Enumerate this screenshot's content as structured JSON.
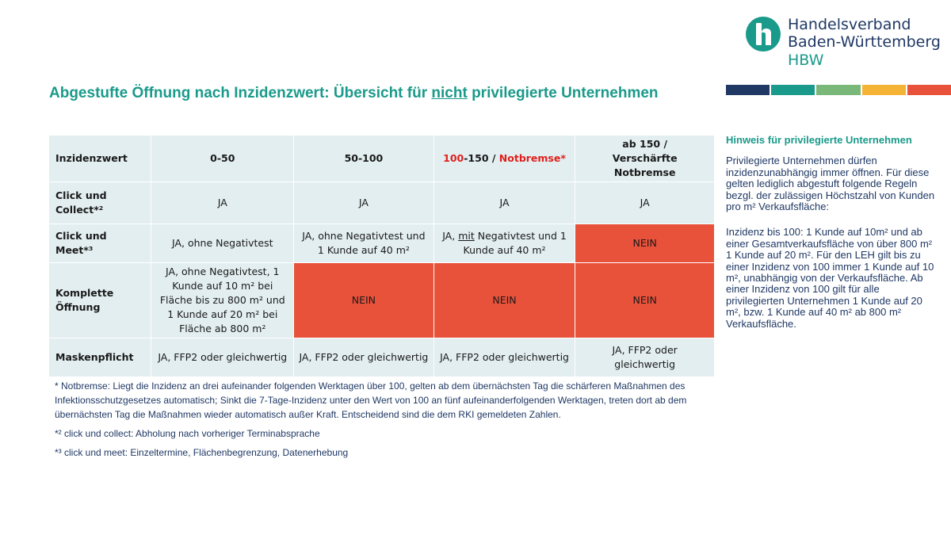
{
  "logo": {
    "line1": "Handelsverband",
    "line2": "Baden-Württemberg",
    "line3": "HBW",
    "mark_color": "#1a9a8a",
    "bar_colors": [
      "#1f3864",
      "#1a9a8a",
      "#7ab87a",
      "#f5b335",
      "#e8513a"
    ]
  },
  "title": {
    "part1": "Abgestufte Öffnung nach Inzidenzwert: Übersicht für ",
    "underlined": "nicht",
    "part2": " privilegierte Unternehmen"
  },
  "table": {
    "header": {
      "c0": "Inzidenzwert",
      "c1": "0-50",
      "c2": "50-100",
      "c3_a": "100",
      "c3_b": "-150 / ",
      "c3_c": "Notbremse*",
      "c4_a": "ab 150 /",
      "c4_b": "Verschärfte Notbremse"
    },
    "row1": {
      "label": "Click und Collect*²",
      "c1": "JA",
      "c2": "JA",
      "c3": "JA",
      "c4": "JA"
    },
    "row2": {
      "label": "Click und Meet*³",
      "c1": "JA, ohne Negativtest",
      "c2": "JA, ohne Negativtest und 1 Kunde auf 40 m²",
      "c3_a": "JA, ",
      "c3_b": "mit",
      "c3_c": " Negativtest und 1 Kunde auf 40 m²",
      "c4": "NEIN"
    },
    "row3": {
      "label": "Komplette Öffnung",
      "c1": "JA, ohne Negativtest, 1 Kunde auf 10 m² bei Fläche bis zu 800 m² und 1 Kunde auf 20 m² bei Fläche ab 800 m²",
      "c2": "NEIN",
      "c3": "NEIN",
      "c4": "NEIN"
    },
    "row4": {
      "label": "Maskenpflicht",
      "c1": "JA, FFP2 oder gleichwertig",
      "c2": "JA, FFP2 oder gleichwertig",
      "c3": "JA, FFP2 oder gleichwertig",
      "c4": "JA, FFP2 oder gleichwertig"
    },
    "nein_color": "#e8513a",
    "cell_color": "#e3eef0"
  },
  "footnotes": {
    "f1": "* Notbremse: Liegt die Inzidenz an drei aufeinander folgenden Werktagen über 100, gelten ab dem übernächsten Tag die schärferen Maßnahmen des Infektionsschutzgesetzes automatisch; Sinkt die 7-Tage-Inzidenz unter den Wert von 100 an fünf aufeinanderfolgenden Werktagen, treten dort ab dem übernächsten Tag die Maßnahmen wieder automatisch außer Kraft. Entscheidend sind die dem RKI gemeldeten Zahlen.",
    "f2": "*² click und collect: Abholung nach vorheriger Terminabsprache",
    "f3": "*³ click und meet: Einzeltermine, Flächenbegrenzung, Datenerhebung"
  },
  "side": {
    "title": "Hinweis für privilegierte Unternehmen",
    "p1": "Privilegierte Unternehmen dürfen inzidenzunabhängig immer öffnen. Für diese gelten lediglich abgestuft folgende Regeln bezgl. der zulässigen Höchstzahl von Kunden pro m² Verkaufsfläche:",
    "p2": "Inzidenz bis 100: 1 Kunde auf 10m² und ab einer Gesamtverkaufsfläche von über 800 m² 1 Kunde auf 20 m². Für den LEH gilt bis zu einer Inzidenz von 100 immer 1 Kunde auf 10 m², unabhängig von der Verkaufsfläche. Ab einer Inzidenz von 100 gilt für alle privilegierten Unternehmen 1 Kunde auf 20 m², bzw. 1 Kunde auf 40 m² ab 800 m² Verkaufsfläche."
  }
}
